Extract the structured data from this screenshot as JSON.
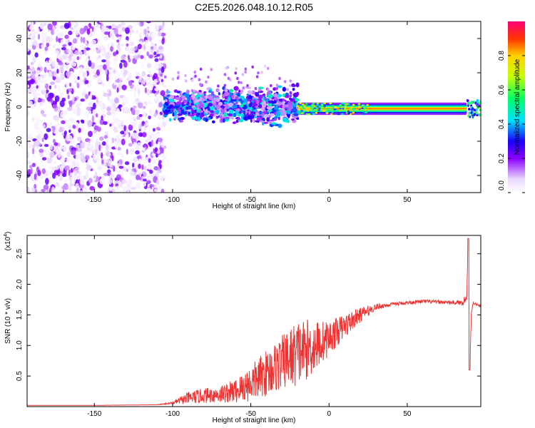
{
  "title": "C2E5.2026.048.10.12.R05",
  "chart_data": [
    {
      "type": "heatmap",
      "name": "spectrogram",
      "xlabel": "Height of straight line (km)",
      "ylabel": "Frequency (Hz)",
      "xlim": [
        -193,
        97
      ],
      "ylim": [
        -50,
        50
      ],
      "xticks": [
        -150,
        -100,
        -50,
        0,
        50
      ],
      "yticks": [
        -40,
        -20,
        0,
        20,
        40
      ],
      "colorbar": {
        "label": "Normalized spectral amplitude",
        "range": [
          0,
          1
        ],
        "ticks": [
          0.0,
          0.2,
          0.4,
          0.6,
          0.8
        ],
        "tick_labels": [
          "0.0",
          "0.2",
          "0.4",
          "0.6",
          "0.8"
        ]
      },
      "regions": [
        {
          "x_range": [
            -193,
            -105
          ],
          "description_values": {
            "freq_spread": [
              -50,
              50
            ],
            "amplitude": [
              0.02,
              0.25
            ]
          }
        },
        {
          "x_range": [
            -105,
            -20
          ],
          "description_values": {
            "freq_spread": [
              -8,
              10
            ],
            "amplitude": [
              0.1,
              0.5
            ]
          }
        },
        {
          "x_range": [
            -20,
            88
          ],
          "description_values": {
            "freq_center": -1,
            "freq_width": 4,
            "amplitude": [
              0.6,
              0.85
            ]
          }
        },
        {
          "x_range": [
            88,
            97
          ],
          "description_values": {
            "freq_spread": [
              -6,
              4
            ],
            "amplitude": [
              0.4,
              0.6
            ]
          }
        }
      ]
    },
    {
      "type": "line",
      "name": "snr",
      "xlabel": "Height of straight line (km)",
      "ylabel": "SNR (10 * v/v)",
      "y_multiplier": "(x10",
      "y_multiplier_exp": "4",
      "y_multiplier_close": ")",
      "xlim": [
        -193,
        97
      ],
      "ylim": [
        0,
        2.8
      ],
      "xticks": [
        -150,
        -100,
        -50,
        0,
        50
      ],
      "yticks": [
        0.5,
        1.0,
        1.5,
        2.0,
        2.5
      ],
      "ytick_labels": [
        "0.5",
        "1.0",
        "1.5",
        "2.0",
        "2.5"
      ],
      "series": [
        {
          "name": "SNR",
          "color": "#ee3333",
          "x": [
            -193,
            -150,
            -110,
            -100,
            -90,
            -80,
            -70,
            -60,
            -50,
            -40,
            -30,
            -20,
            -10,
            0,
            10,
            20,
            30,
            40,
            50,
            60,
            70,
            80,
            85,
            88,
            89,
            90,
            91,
            92,
            95,
            97
          ],
          "y": [
            0.02,
            0.02,
            0.03,
            0.06,
            0.14,
            0.18,
            0.2,
            0.25,
            0.38,
            0.55,
            0.72,
            0.88,
            0.98,
            1.12,
            1.32,
            1.5,
            1.63,
            1.67,
            1.7,
            1.72,
            1.71,
            1.7,
            1.7,
            1.78,
            2.75,
            0.6,
            1.55,
            1.7,
            1.66,
            1.64
          ],
          "noise_amplitude": [
            0,
            0,
            0,
            0.02,
            0.1,
            0.12,
            0.14,
            0.2,
            0.3,
            0.38,
            0.45,
            0.55,
            0.45,
            0.28,
            0.2,
            0.12,
            0.05,
            0.03,
            0.03,
            0.03,
            0.03,
            0.03,
            0.04,
            0.1,
            0,
            0,
            0.05,
            0.03,
            0.02,
            0.02
          ]
        }
      ]
    }
  ]
}
